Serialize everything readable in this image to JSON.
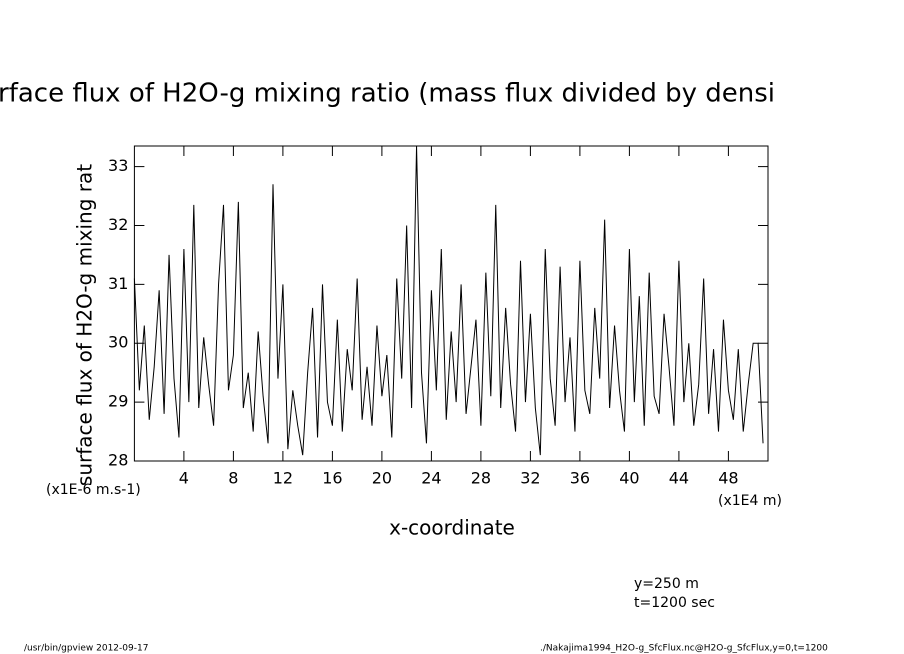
{
  "chart_data": {
    "type": "line",
    "title": "rface flux of H2O-g mixing ratio (mass flux divided by densi",
    "ylabel": "surface flux of H2O-g mixing rat",
    "yunit": "(x1E-6 m.s-1)",
    "xlabel": "x-coordinate",
    "xunit": "(x1E4 m)",
    "annotations": [
      "y=250 m",
      "t=1200 sec"
    ],
    "footer_left": "/usr/bin/gpview  2012-09-17",
    "footer_right": "./Nakajima1994_H2O-g_SfcFlux.nc@H2O-g_SfcFlux,y=0,t=1200",
    "color": "#000000",
    "xlim": [
      0,
      51.2
    ],
    "ylim": [
      28,
      33.35
    ],
    "xticks": [
      4,
      8,
      12,
      16,
      20,
      24,
      28,
      32,
      36,
      40,
      44,
      48
    ],
    "yticks": [
      28,
      29,
      30,
      31,
      32,
      33
    ],
    "series": [
      {
        "x": [
          0,
          0.4,
          0.8,
          1.2,
          1.6,
          2,
          2.4,
          2.8,
          3.2,
          3.6,
          4,
          4.4,
          4.8,
          5.2,
          5.6,
          6,
          6.4,
          6.8,
          7.2,
          7.6,
          8,
          8.4,
          8.8,
          9.2,
          9.6,
          10,
          10.4,
          10.8,
          11.2,
          11.6,
          12,
          12.4,
          12.8,
          13.2,
          13.6,
          14,
          14.4,
          14.8,
          15.2,
          15.6,
          16,
          16.4,
          16.8,
          17.2,
          17.6,
          18,
          18.4,
          18.8,
          19.2,
          19.6,
          20,
          20.4,
          20.8,
          21.2,
          21.6,
          22,
          22.4,
          22.8,
          23.2,
          23.6,
          24,
          24.4,
          24.8,
          25.2,
          25.6,
          26,
          26.4,
          26.8,
          27.2,
          27.6,
          28,
          28.4,
          28.8,
          29.2,
          29.6,
          30,
          30.4,
          30.8,
          31.2,
          31.6,
          32,
          32.4,
          32.8,
          33.2,
          33.6,
          34,
          34.4,
          34.8,
          35.2,
          35.6,
          36,
          36.4,
          36.8,
          37.2,
          37.6,
          38,
          38.4,
          38.8,
          39.2,
          39.6,
          40,
          40.4,
          40.8,
          41.2,
          41.6,
          42,
          42.4,
          42.8,
          43.2,
          43.6,
          44,
          44.4,
          44.8,
          45.2,
          45.6,
          46,
          46.4,
          46.8,
          47.2,
          47.6,
          48,
          48.4,
          48.8,
          49.2,
          49.6,
          50,
          50.4,
          50.8
        ],
        "values": [
          31.1,
          29.2,
          30.3,
          28.7,
          29.6,
          30.9,
          28.8,
          31.5,
          29.4,
          28.4,
          31.6,
          29.0,
          32.35,
          28.9,
          30.1,
          29.3,
          28.6,
          31.0,
          32.35,
          29.2,
          29.8,
          32.4,
          28.9,
          29.5,
          28.5,
          30.2,
          29.1,
          28.3,
          32.7,
          29.4,
          31.0,
          28.2,
          29.2,
          28.6,
          28.1,
          29.5,
          30.6,
          28.4,
          31.0,
          29.0,
          28.6,
          30.4,
          28.5,
          29.9,
          29.2,
          31.1,
          28.7,
          29.6,
          28.6,
          30.3,
          29.1,
          29.8,
          28.4,
          31.1,
          29.4,
          32.0,
          28.9,
          33.35,
          29.5,
          28.3,
          30.9,
          29.2,
          31.6,
          28.7,
          30.2,
          29.0,
          31.0,
          28.8,
          29.6,
          30.4,
          28.6,
          31.2,
          29.1,
          32.35,
          28.9,
          30.6,
          29.3,
          28.5,
          31.4,
          29.0,
          30.5,
          28.9,
          28.1,
          31.6,
          29.4,
          28.6,
          31.3,
          29.0,
          30.1,
          28.5,
          31.4,
          29.2,
          28.8,
          30.6,
          29.4,
          32.1,
          28.9,
          30.3,
          29.2,
          28.5,
          31.6,
          29.0,
          30.8,
          28.6,
          31.2,
          29.1,
          28.8,
          30.5,
          29.6,
          28.6,
          31.4,
          29.0,
          30.0,
          28.6,
          29.3,
          31.1,
          28.8,
          29.9,
          28.5,
          30.4,
          29.2,
          28.7,
          29.9,
          28.5,
          29.3,
          30.0,
          30.0,
          28.3
        ]
      }
    ]
  }
}
